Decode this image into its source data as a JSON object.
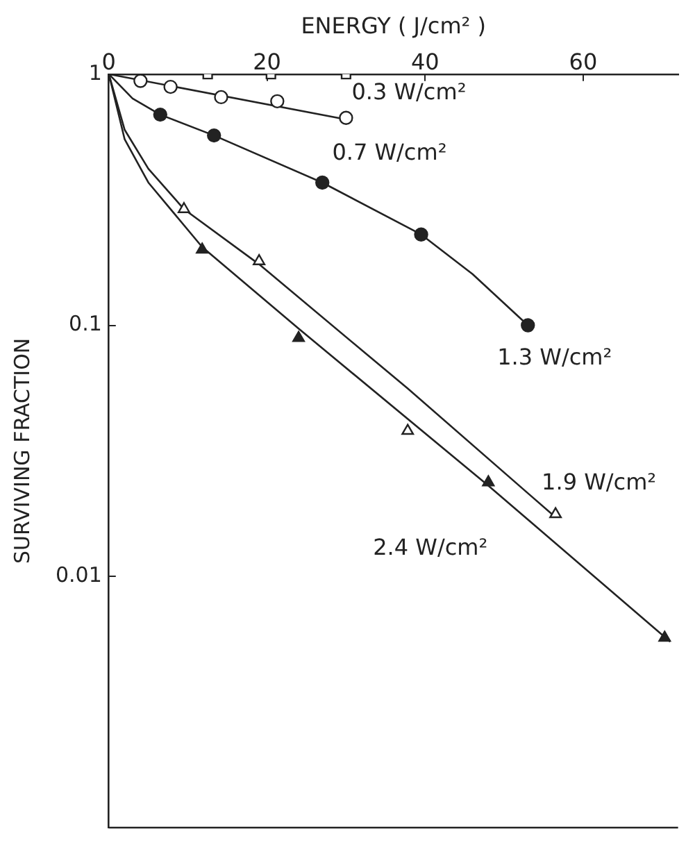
{
  "chart_data": {
    "type": "scatter",
    "xlabel": "ENERGY ( J/cm² )",
    "ylabel": "SURVIVING FRACTION",
    "xlim": [
      0,
      72
    ],
    "xticks": [
      0,
      20,
      40,
      60
    ],
    "ylim": [
      0.001,
      1
    ],
    "yticks": [
      1,
      0.1,
      0.01
    ],
    "log": "y",
    "grid": false,
    "legend": false,
    "series": [
      {
        "name": "0.3 W/cm²",
        "marker": "square",
        "color": "#222222",
        "colors": [
          "#ffffff",
          "#ffffff",
          "#ffffff"
        ],
        "x": [
          12.5,
          20.5,
          30
        ],
        "values": [
          1,
          1,
          1
        ]
      },
      {
        "name": "0.7 W/cm²",
        "marker": "circle",
        "color": "#222222",
        "colors": [
          "#ffffff",
          "#ffffff",
          "#ffffff",
          "#ffffff",
          "#ffffff"
        ],
        "x": [
          4,
          7.8,
          14.2,
          21.3,
          30
        ],
        "values": [
          0.94,
          0.89,
          0.81,
          0.78,
          0.67
        ]
      },
      {
        "name": "1.3 W/cm²",
        "marker": "circle",
        "color": "#222222",
        "x": [
          6.5,
          13.3,
          27,
          39.5,
          53
        ],
        "values": [
          0.69,
          0.57,
          0.37,
          0.23,
          0.1
        ]
      },
      {
        "name": "1.9 W/cm²",
        "marker": "triangle",
        "color": "#222222",
        "colors": [
          "#ffffff",
          "#ffffff",
          "#ffffff",
          "#ffffff"
        ],
        "x": [
          9.5,
          19,
          37.8,
          56.5
        ],
        "values": [
          0.29,
          0.18,
          0.038,
          0.0177
        ]
      },
      {
        "name": "2.4 W/cm²",
        "marker": "triangle",
        "color": "#222222",
        "x": [
          11.8,
          24,
          48,
          70.3
        ],
        "values": [
          0.2,
          0.089,
          0.0237,
          0.0057
        ]
      },
      {
        "type": "line",
        "color": "#222222",
        "x": [
          0,
          30
        ],
        "values": [
          1,
          0.66
        ]
      },
      {
        "type": "line",
        "color": "#222222",
        "x": [
          0,
          3,
          6.5,
          13.3,
          27,
          39.5,
          46,
          53
        ],
        "values": [
          1,
          0.8,
          0.69,
          0.57,
          0.37,
          0.23,
          0.16,
          0.1
        ]
      },
      {
        "type": "line",
        "color": "#222222",
        "x": [
          0,
          2,
          5,
          9.5,
          19,
          37.8,
          56.5
        ],
        "values": [
          1,
          0.6,
          0.42,
          0.29,
          0.175,
          0.056,
          0.0172
        ]
      },
      {
        "type": "line",
        "color": "#222222",
        "x": [
          0,
          2,
          5,
          11.8,
          24,
          48,
          71
        ],
        "values": [
          1,
          0.55,
          0.37,
          0.205,
          0.097,
          0.023,
          0.0055
        ]
      }
    ]
  }
}
